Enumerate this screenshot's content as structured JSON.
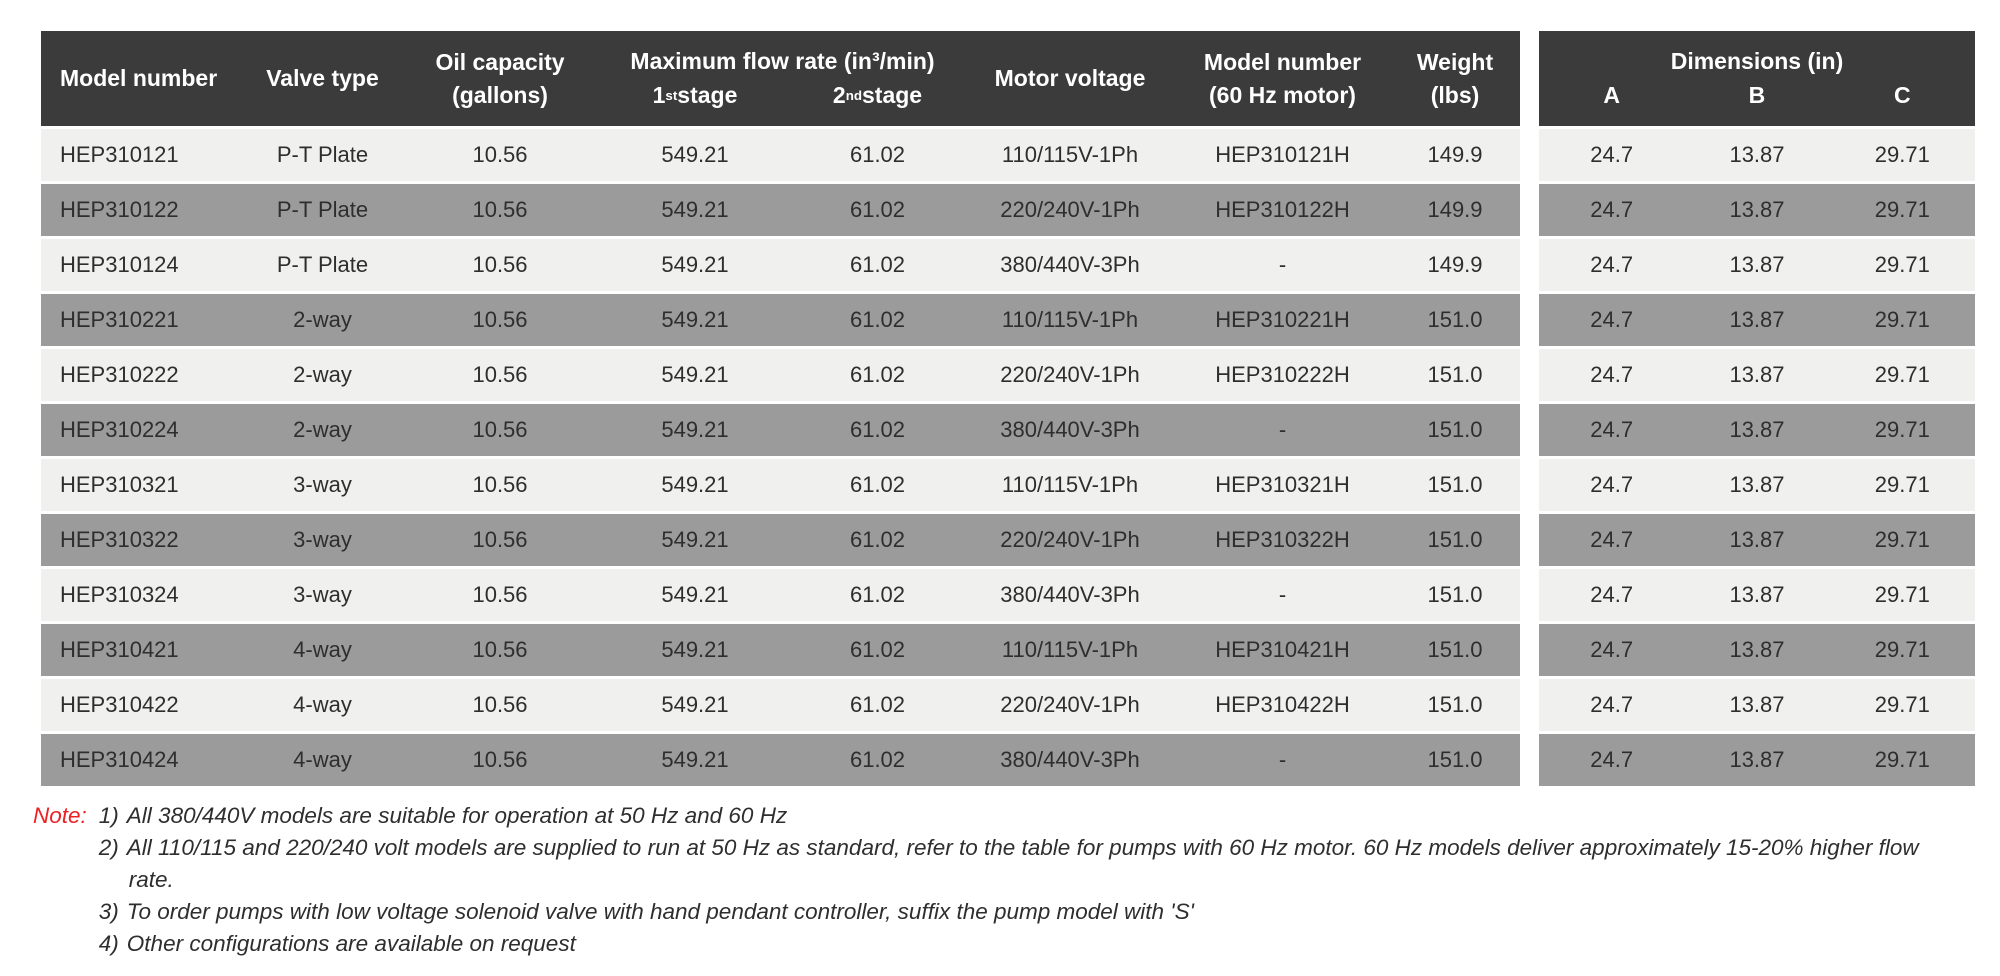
{
  "colors": {
    "header_bg": "#3b3b3b",
    "row_light": "#f0f0ef",
    "row_dark": "#9b9b9b",
    "cell_text": "#2e2e2e",
    "note_red": "#ed2024"
  },
  "table": {
    "headers": {
      "model_number": "Model number",
      "valve_type": "Valve type",
      "oil_capacity_line1": "Oil capacity",
      "oil_capacity_line2": "(gallons)",
      "flow_rate_title": "Maximum flow rate (in³/min)",
      "stage1": {
        "num": "1",
        "sup": "st",
        "rest": " stage"
      },
      "stage2": {
        "num": "2",
        "sup": "nd",
        "rest": " stage"
      },
      "motor_voltage": "Motor voltage",
      "model_60hz_line1": "Model number",
      "model_60hz_line2": "(60 Hz motor)",
      "weight_line1": "Weight",
      "weight_line2": "(lbs)",
      "dimensions_title": "Dimensions (in)",
      "dim_a": "A",
      "dim_b": "B",
      "dim_c": "C"
    },
    "rows": [
      {
        "model": "HEP310121",
        "valve": "P-T Plate",
        "oil": "10.56",
        "stage1": "549.21",
        "stage2": "61.02",
        "voltage": "110/115V-1Ph",
        "model_60hz": "HEP310121H",
        "weight": "149.9",
        "dim_a": "24.7",
        "dim_b": "13.87",
        "dim_c": "29.71"
      },
      {
        "model": "HEP310122",
        "valve": "P-T Plate",
        "oil": "10.56",
        "stage1": "549.21",
        "stage2": "61.02",
        "voltage": "220/240V-1Ph",
        "model_60hz": "HEP310122H",
        "weight": "149.9",
        "dim_a": "24.7",
        "dim_b": "13.87",
        "dim_c": "29.71"
      },
      {
        "model": "HEP310124",
        "valve": "P-T Plate",
        "oil": "10.56",
        "stage1": "549.21",
        "stage2": "61.02",
        "voltage": "380/440V-3Ph",
        "model_60hz": "-",
        "weight": "149.9",
        "dim_a": "24.7",
        "dim_b": "13.87",
        "dim_c": "29.71"
      },
      {
        "model": "HEP310221",
        "valve": "2-way",
        "oil": "10.56",
        "stage1": "549.21",
        "stage2": "61.02",
        "voltage": "110/115V-1Ph",
        "model_60hz": "HEP310221H",
        "weight": "151.0",
        "dim_a": "24.7",
        "dim_b": "13.87",
        "dim_c": "29.71"
      },
      {
        "model": "HEP310222",
        "valve": "2-way",
        "oil": "10.56",
        "stage1": "549.21",
        "stage2": "61.02",
        "voltage": "220/240V-1Ph",
        "model_60hz": "HEP310222H",
        "weight": "151.0",
        "dim_a": "24.7",
        "dim_b": "13.87",
        "dim_c": "29.71"
      },
      {
        "model": "HEP310224",
        "valve": "2-way",
        "oil": "10.56",
        "stage1": "549.21",
        "stage2": "61.02",
        "voltage": "380/440V-3Ph",
        "model_60hz": "-",
        "weight": "151.0",
        "dim_a": "24.7",
        "dim_b": "13.87",
        "dim_c": "29.71"
      },
      {
        "model": "HEP310321",
        "valve": "3-way",
        "oil": "10.56",
        "stage1": "549.21",
        "stage2": "61.02",
        "voltage": "110/115V-1Ph",
        "model_60hz": "HEP310321H",
        "weight": "151.0",
        "dim_a": "24.7",
        "dim_b": "13.87",
        "dim_c": "29.71"
      },
      {
        "model": "HEP310322",
        "valve": "3-way",
        "oil": "10.56",
        "stage1": "549.21",
        "stage2": "61.02",
        "voltage": "220/240V-1Ph",
        "model_60hz": "HEP310322H",
        "weight": "151.0",
        "dim_a": "24.7",
        "dim_b": "13.87",
        "dim_c": "29.71"
      },
      {
        "model": "HEP310324",
        "valve": "3-way",
        "oil": "10.56",
        "stage1": "549.21",
        "stage2": "61.02",
        "voltage": "380/440V-3Ph",
        "model_60hz": "-",
        "weight": "151.0",
        "dim_a": "24.7",
        "dim_b": "13.87",
        "dim_c": "29.71"
      },
      {
        "model": "HEP310421",
        "valve": "4-way",
        "oil": "10.56",
        "stage1": "549.21",
        "stage2": "61.02",
        "voltage": "110/115V-1Ph",
        "model_60hz": "HEP310421H",
        "weight": "151.0",
        "dim_a": "24.7",
        "dim_b": "13.87",
        "dim_c": "29.71"
      },
      {
        "model": "HEP310422",
        "valve": "4-way",
        "oil": "10.56",
        "stage1": "549.21",
        "stage2": "61.02",
        "voltage": "220/240V-1Ph",
        "model_60hz": "HEP310422H",
        "weight": "151.0",
        "dim_a": "24.7",
        "dim_b": "13.87",
        "dim_c": "29.71"
      },
      {
        "model": "HEP310424",
        "valve": "4-way",
        "oil": "10.56",
        "stage1": "549.21",
        "stage2": "61.02",
        "voltage": "380/440V-3Ph",
        "model_60hz": "-",
        "weight": "151.0",
        "dim_a": "24.7",
        "dim_b": "13.87",
        "dim_c": "29.71"
      }
    ]
  },
  "notes": {
    "label": "Note:",
    "items": [
      {
        "num": "1)",
        "text": "All 380/440V models are suitable for operation at 50 Hz and 60 Hz"
      },
      {
        "num": "2)",
        "text": "All 110/115 and 220/240 volt models are supplied to run at 50 Hz as standard, refer to the table for pumps with 60 Hz motor. 60 Hz models deliver approximately 15-20% higher flow rate."
      },
      {
        "num": "3)",
        "text": "To order pumps with low voltage solenoid valve with hand pendant controller, suffix the pump model with 'S'"
      },
      {
        "num": "4)",
        "text": "Other configurations are available on request"
      }
    ]
  }
}
